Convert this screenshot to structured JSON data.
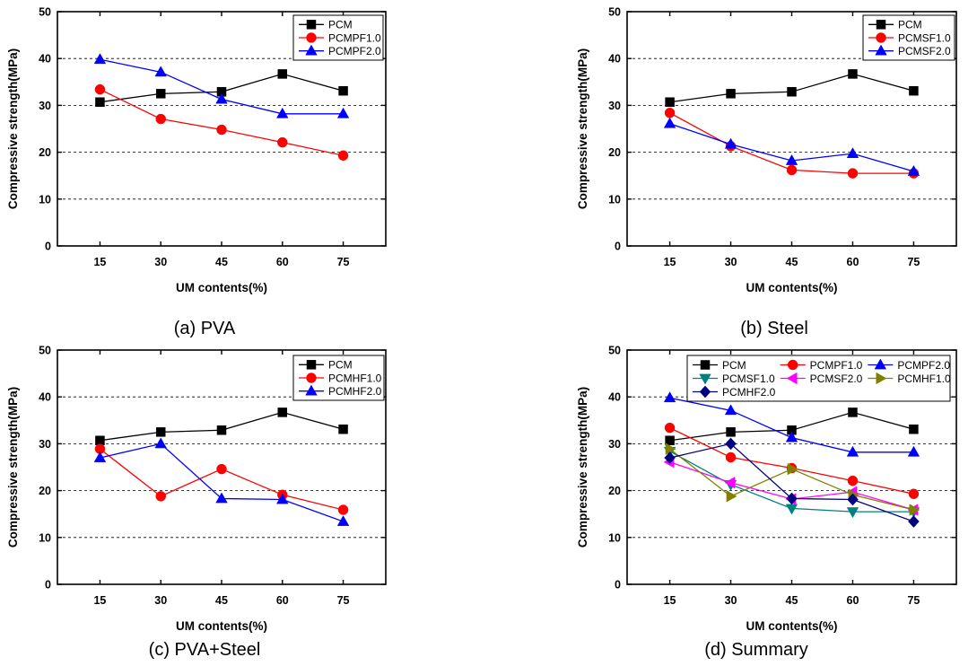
{
  "panels": [
    {
      "caption": "(a) PVA",
      "chart_data": {
        "type": "line",
        "x": [
          15,
          30,
          45,
          60,
          75
        ],
        "xlabel": "UM contents(%)",
        "ylabel": "Compressive strength(MPa)",
        "ylim": [
          0,
          50
        ],
        "yticks": [
          0,
          10,
          20,
          30,
          40,
          50
        ],
        "grid": "horizontal dashed",
        "legend": "top-right",
        "series": [
          {
            "name": "PCM",
            "color": "#000000",
            "marker": "square",
            "values": [
              30.7,
              32.5,
              32.9,
              36.7,
              33.1
            ]
          },
          {
            "name": "PCMPF1.0",
            "color": "#ff0000",
            "marker": "circle",
            "values": [
              33.4,
              27.1,
              24.8,
              22.1,
              19.3
            ]
          },
          {
            "name": "PCMPF2.0",
            "color": "#0000ff",
            "marker": "triangle-up",
            "values": [
              39.8,
              37.1,
              31.3,
              28.2,
              28.2
            ]
          }
        ]
      }
    },
    {
      "caption": "(b) Steel",
      "chart_data": {
        "type": "line",
        "x": [
          15,
          30,
          45,
          60,
          75
        ],
        "xlabel": "UM contents(%)",
        "ylabel": "Compressive strength(MPa)",
        "ylim": [
          0,
          50
        ],
        "yticks": [
          0,
          10,
          20,
          30,
          40,
          50
        ],
        "grid": "horizontal dashed",
        "legend": "top-right",
        "series": [
          {
            "name": "PCM",
            "color": "#000000",
            "marker": "square",
            "values": [
              30.7,
              32.5,
              32.9,
              36.7,
              33.1
            ]
          },
          {
            "name": "PCMSF1.0",
            "color": "#ff0000",
            "marker": "circle",
            "values": [
              28.4,
              21.3,
              16.2,
              15.5,
              15.5
            ]
          },
          {
            "name": "PCMSF2.0",
            "color": "#0000ff",
            "marker": "triangle-up",
            "values": [
              26.1,
              21.7,
              18.2,
              19.7,
              15.9
            ]
          }
        ]
      }
    },
    {
      "caption": "(c) PVA+Steel",
      "chart_data": {
        "type": "line",
        "x": [
          15,
          30,
          45,
          60,
          75
        ],
        "xlabel": "UM contents(%)",
        "ylabel": "Compressive strength(MPa)",
        "ylim": [
          0,
          50
        ],
        "yticks": [
          0,
          10,
          20,
          30,
          40,
          50
        ],
        "grid": "horizontal dashed",
        "legend": "top-right",
        "series": [
          {
            "name": "PCM",
            "color": "#000000",
            "marker": "square",
            "values": [
              30.7,
              32.5,
              32.9,
              36.7,
              33.1
            ]
          },
          {
            "name": "PCMHF1.0",
            "color": "#ff0000",
            "marker": "circle",
            "values": [
              28.9,
              18.8,
              24.6,
              19.1,
              15.9
            ]
          },
          {
            "name": "PCMHF2.0",
            "color": "#0000ff",
            "marker": "triangle-up",
            "values": [
              27.0,
              30.0,
              18.3,
              18.1,
              13.4
            ]
          }
        ]
      }
    },
    {
      "caption": "(d) Summary",
      "chart_data": {
        "type": "line",
        "x": [
          15,
          30,
          45,
          60,
          75
        ],
        "xlabel": "UM contents(%)",
        "ylabel": "Compressive strength(MPa)",
        "ylim": [
          0,
          50
        ],
        "yticks": [
          0,
          10,
          20,
          30,
          40,
          50
        ],
        "grid": "horizontal dashed",
        "legend": "top, 3 columns",
        "series": [
          {
            "name": "PCM",
            "color": "#000000",
            "marker": "square",
            "values": [
              30.7,
              32.5,
              32.9,
              36.7,
              33.1
            ]
          },
          {
            "name": "PCMPF1.0",
            "color": "#ff0000",
            "marker": "circle",
            "values": [
              33.4,
              27.1,
              24.8,
              22.1,
              19.3
            ]
          },
          {
            "name": "PCMPF2.0",
            "color": "#0000ff",
            "marker": "triangle-up",
            "values": [
              39.8,
              37.1,
              31.3,
              28.2,
              28.2
            ]
          },
          {
            "name": "PCMSF1.0",
            "color": "#008080",
            "marker": "triangle-down",
            "values": [
              28.4,
              21.3,
              16.2,
              15.5,
              15.5
            ]
          },
          {
            "name": "PCMSF2.0",
            "color": "#ff00ff",
            "marker": "triangle-left",
            "values": [
              26.1,
              21.7,
              18.2,
              19.7,
              15.9
            ]
          },
          {
            "name": "PCMHF1.0",
            "color": "#808000",
            "marker": "triangle-right",
            "values": [
              28.9,
              18.8,
              24.6,
              19.1,
              15.9
            ]
          },
          {
            "name": "PCMHF2.0",
            "color": "#000080",
            "marker": "diamond",
            "values": [
              27.0,
              30.0,
              18.3,
              18.1,
              13.4
            ]
          }
        ]
      }
    }
  ]
}
